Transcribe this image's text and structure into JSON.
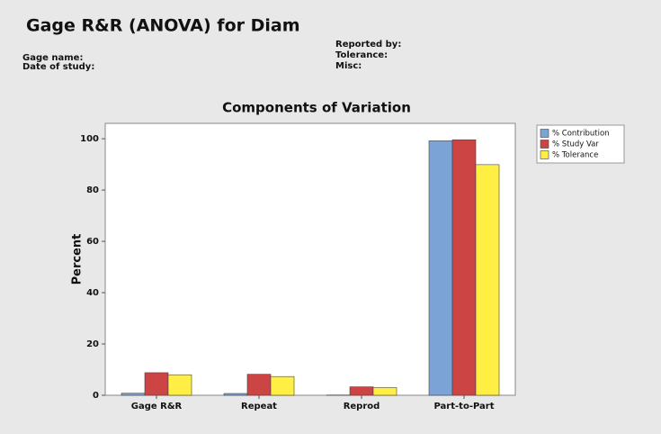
{
  "header": {
    "title": "Gage R&R (ANOVA) for Diam",
    "left_fields": [
      "Gage name:",
      "Date of study:"
    ],
    "right_fields": [
      "Reported by:",
      "Tolerance:",
      "Misc:"
    ]
  },
  "chart_data": {
    "type": "bar",
    "title": "Components of Variation",
    "y_label": "Percent",
    "categories": [
      "Gage R&R",
      "Repeat",
      "Reprod",
      "Part-to-Part"
    ],
    "series": [
      {
        "name": "% Contribution",
        "color": "#7ba3d6",
        "values": [
          0.8,
          0.7,
          0.1,
          99.2
        ]
      },
      {
        "name": "% Study Var",
        "color": "#cc4444",
        "values": [
          8.8,
          8.2,
          3.3,
          99.6
        ]
      },
      {
        "name": "% Tolerance",
        "color": "#ffee44",
        "values": [
          8.0,
          7.3,
          3.0,
          89.9
        ]
      }
    ],
    "ylim": [
      0,
      106
    ],
    "yticks": [
      0,
      20,
      40,
      60,
      80,
      100
    ],
    "grid": false,
    "legend": "right"
  }
}
